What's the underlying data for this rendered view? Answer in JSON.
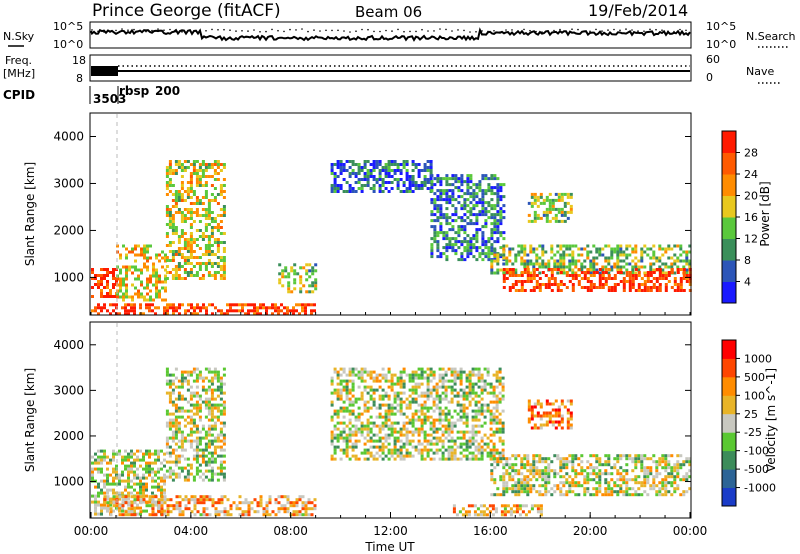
{
  "header": {
    "station": "Prince George (fitACF)",
    "beam": "Beam 06",
    "date": "19/Feb/2014"
  },
  "status_panels": {
    "nsky_label": "N.Sky",
    "nsearch_label": "N.Search",
    "nsky_ticks": [
      "10^5",
      "10^0"
    ],
    "nsearch_ticks": [
      "10^5",
      "10^0"
    ],
    "freq_label": "Freq.",
    "freq_unit": "[MHz]",
    "freq_ticks": [
      "18",
      "8"
    ],
    "nave_label": "Nave",
    "nave_ticks": [
      "60",
      "0"
    ],
    "cpid_label": "CPID",
    "cpid_value": "3503",
    "cpid_name": "rbsp",
    "cpid_extra": "200"
  },
  "chart_data": [
    {
      "type": "heatmap",
      "name": "power",
      "ylabel": "Slant Range [km]",
      "yticks": [
        "1000",
        "2000",
        "3000",
        "4000"
      ],
      "ylim": [
        200,
        4500
      ],
      "colorbar_label": "Power [dB]",
      "colorbar_ticks": [
        "4",
        "8",
        "12",
        "16",
        "20",
        "24",
        "28"
      ],
      "colors": [
        "#1a1aff",
        "#2c55b8",
        "#3a8f5a",
        "#5ac83c",
        "#e8c81e",
        "#ff8c00",
        "#ff5a00",
        "#ff1a00"
      ],
      "regions": [
        {
          "t": [
            0.0,
            1.0
          ],
          "r": [
            600,
            1200
          ],
          "level": 0.9
        },
        {
          "t": [
            1.0,
            3.0
          ],
          "r": [
            500,
            1700
          ],
          "level": 0.6
        },
        {
          "t": [
            3.0,
            5.3
          ],
          "r": [
            1000,
            3500
          ],
          "level": 0.55
        },
        {
          "t": [
            0.0,
            9.0
          ],
          "r": [
            250,
            450
          ],
          "level": 0.9
        },
        {
          "t": [
            7.5,
            9.0
          ],
          "r": [
            700,
            1300
          ],
          "level": 0.45
        },
        {
          "t": [
            9.6,
            13.6
          ],
          "r": [
            2800,
            3500
          ],
          "level": 0.2
        },
        {
          "t": [
            13.6,
            16.5
          ],
          "r": [
            1400,
            3200
          ],
          "level": 0.25
        },
        {
          "t": [
            17.5,
            19.3
          ],
          "r": [
            2200,
            2800
          ],
          "level": 0.45
        },
        {
          "t": [
            16.0,
            24.0
          ],
          "r": [
            1100,
            1700
          ],
          "level": 0.45
        },
        {
          "t": [
            16.5,
            24.0
          ],
          "r": [
            750,
            1200
          ],
          "level": 0.9
        }
      ]
    },
    {
      "type": "heatmap",
      "name": "velocity",
      "ylabel": "Slant Range [km]",
      "yticks": [
        "1000",
        "2000",
        "3000",
        "4000"
      ],
      "ylim": [
        200,
        4500
      ],
      "xlabel": "Time UT",
      "xticks": [
        "00:00",
        "04:00",
        "08:00",
        "12:00",
        "16:00",
        "20:00",
        "00:00"
      ],
      "xlim": [
        0,
        24
      ],
      "colorbar_label": "Velocity [m s^-1]",
      "colorbar_ticks": [
        "1000",
        "500",
        "100",
        "25",
        "-25",
        "-100",
        "-500",
        "-1000"
      ],
      "colors": [
        "#1a3cc8",
        "#2c6496",
        "#3c8c5a",
        "#5ac832",
        "#c8c8c0",
        "#e8b428",
        "#ff8c00",
        "#ff4600",
        "#ff0000"
      ],
      "regions": [
        {
          "t": [
            0.0,
            3.0
          ],
          "r": [
            300,
            1700
          ],
          "level": 0.5
        },
        {
          "t": [
            3.0,
            5.3
          ],
          "r": [
            1000,
            3500
          ],
          "level": 0.5
        },
        {
          "t": [
            0.5,
            9.0
          ],
          "r": [
            250,
            700
          ],
          "level": 0.65
        },
        {
          "t": [
            9.6,
            16.5
          ],
          "r": [
            1500,
            3500
          ],
          "level": 0.5
        },
        {
          "t": [
            17.5,
            19.3
          ],
          "r": [
            2200,
            2800
          ],
          "level": 0.75
        },
        {
          "t": [
            16.0,
            24.0
          ],
          "r": [
            700,
            1600
          ],
          "level": 0.5
        },
        {
          "t": [
            14.5,
            18.0
          ],
          "r": [
            250,
            500
          ],
          "level": 0.65
        }
      ]
    }
  ]
}
